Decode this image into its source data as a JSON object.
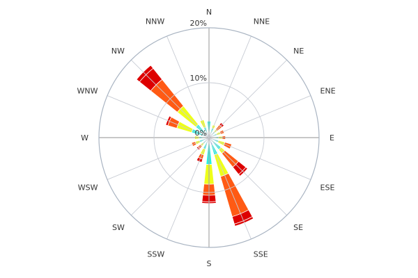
{
  "chart_data": {
    "type": "windrose",
    "title": "",
    "directions": [
      "N",
      "NNE",
      "NE",
      "ENE",
      "E",
      "ESE",
      "SE",
      "SSE",
      "S",
      "SSW",
      "SW",
      "WSW",
      "W",
      "WNW",
      "NW",
      "NNW"
    ],
    "r_ticks": [
      {
        "value": 0,
        "label": "0%"
      },
      {
        "value": 10,
        "label": "10%"
      },
      {
        "value": 20,
        "label": "20%"
      }
    ],
    "r_max": 20,
    "bin_colors": [
      "#ffffff",
      "#1e50e6",
      "#28f0e0",
      "#eeff1a",
      "#ff5a14",
      "#dd0000"
    ],
    "stacks": [
      {
        "dir": "N",
        "cum": [
          0.3,
          0.3,
          3.0
        ]
      },
      {
        "dir": "NNE",
        "cum": [
          0.3,
          0.3,
          1.8,
          2.4
        ]
      },
      {
        "dir": "NE",
        "cum": [
          0.3,
          0.3,
          1.4,
          1.9,
          3.0,
          3.5
        ]
      },
      {
        "dir": "ENE",
        "cum": [
          0.3,
          0.3,
          1.5,
          2.2,
          2.9
        ]
      },
      {
        "dir": "E",
        "cum": [
          0.3,
          0.3,
          1.7,
          2.4,
          3.0
        ]
      },
      {
        "dir": "ESE",
        "cum": [
          0.3,
          0.3,
          1.8,
          3.0,
          4.3
        ]
      },
      {
        "dir": "SE",
        "cum": [
          0.3,
          0.3,
          2.8,
          3.7,
          6.9,
          8.6,
          9.0
        ]
      },
      {
        "dir": "SSE",
        "cum": [
          0.3,
          1.4,
          3.3,
          7.4,
          15.0,
          16.4,
          16.8
        ]
      },
      {
        "dir": "S",
        "cum": [
          0.3,
          1.0,
          4.9,
          8.5,
          10.5,
          11.7,
          12.0
        ]
      },
      {
        "dir": "SSW",
        "cum": [
          0.3,
          0.3,
          2.2,
          3.3,
          4.1,
          4.7
        ]
      },
      {
        "dir": "SW",
        "cum": [
          0.3,
          0.3,
          1.4,
          2.0,
          2.6,
          2.9
        ]
      },
      {
        "dir": "WSW",
        "cum": [
          0.3,
          0.3,
          1.8,
          2.6,
          3.3
        ]
      },
      {
        "dir": "W",
        "cum": [
          0.3,
          0.3,
          1.8,
          2.6
        ]
      },
      {
        "dir": "WNW",
        "cum": [
          0.3,
          0.3,
          3.3,
          6.1,
          7.8,
          8.2
        ]
      },
      {
        "dir": "NW",
        "cum": [
          0.3,
          0.3,
          3.1,
          7.4,
          13.6,
          16.2,
          16.9
        ]
      },
      {
        "dir": "NNW",
        "cum": [
          0.3,
          0.3,
          2.0,
          3.4
        ]
      }
    ],
    "grid": true,
    "legend": "none"
  }
}
